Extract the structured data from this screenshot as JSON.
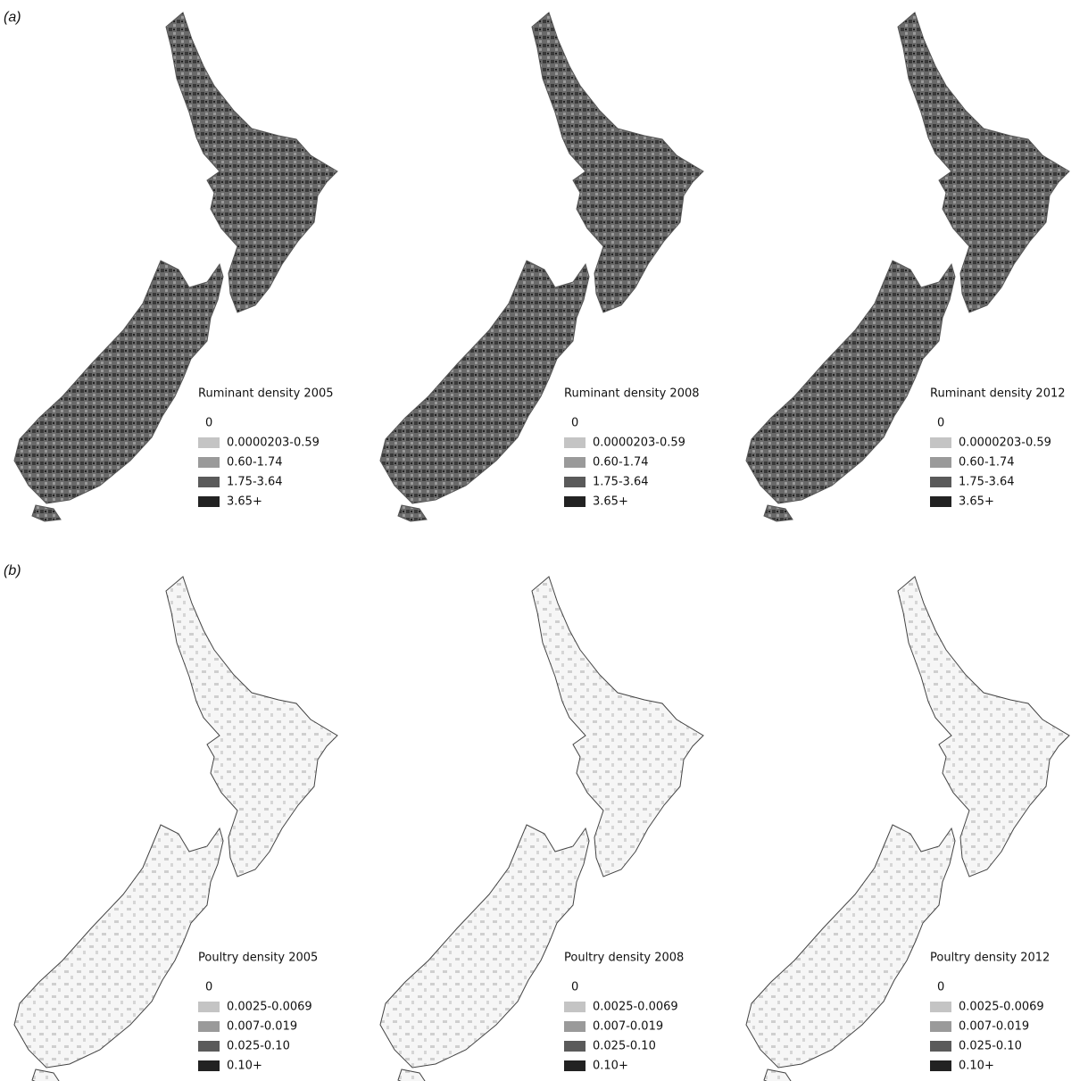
{
  "panels": [
    {
      "label": "(a)",
      "maps": [
        {
          "title": "Ruminant density 2005",
          "legend": [
            "0",
            "0.0000203-0.59",
            "0.60-1.74",
            "1.75-3.64",
            "3.65+"
          ]
        },
        {
          "title": "Ruminant density 2008",
          "legend": [
            "0",
            "0.0000203-0.59",
            "0.60-1.74",
            "1.75-3.64",
            "3.65+"
          ]
        },
        {
          "title": "Ruminant density 2012",
          "legend": [
            "0",
            "0.0000203-0.59",
            "0.60-1.74",
            "1.75-3.64",
            "3.65+"
          ]
        }
      ]
    },
    {
      "label": "(b)",
      "maps": [
        {
          "title": "Poultry density 2005",
          "legend": [
            "0",
            "0.0025-0.0069",
            "0.007-0.019",
            "0.025-0.10",
            "0.10+"
          ]
        },
        {
          "title": "Poultry density 2008",
          "legend": [
            "0",
            "0.0025-0.0069",
            "0.007-0.019",
            "0.025-0.10",
            "0.10+"
          ]
        },
        {
          "title": "Poultry density 2012",
          "legend": [
            "0",
            "0.0025-0.0069",
            "0.007-0.019",
            "0.025-0.10",
            "0.10+"
          ]
        }
      ]
    }
  ]
}
